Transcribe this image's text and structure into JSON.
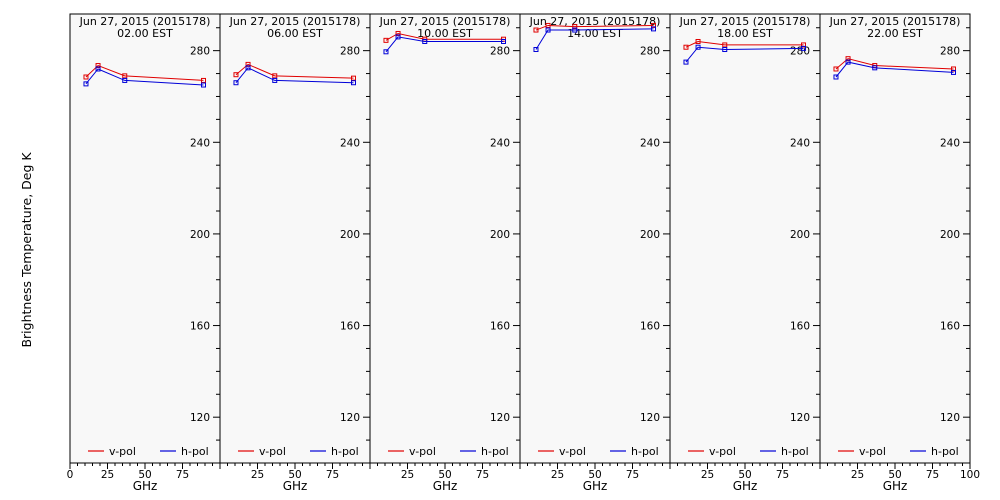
{
  "ylabel": "Brightness Temperature, Deg K",
  "colors": {
    "v_pol": "#e00000",
    "h_pol": "#0000d8",
    "panel_bg": "#f8f8f8",
    "axis": "#000000"
  },
  "chart_data": [
    {
      "type": "line",
      "title": "Jun 27, 2015 (2015178)",
      "subtitle": "02.00 EST",
      "xlabel": "GHz",
      "ylabel": "Brightness Temperature, Deg K",
      "xlim": [
        0,
        100
      ],
      "ylim": [
        100,
        296
      ],
      "x_ticks": [
        0,
        25,
        50,
        75,
        100
      ],
      "x_tick_labels": [
        "0",
        "25",
        "50",
        "75",
        ""
      ],
      "y_ticks": [
        120,
        160,
        200,
        240,
        280
      ],
      "grid": false,
      "legend_position": "bottom",
      "x": [
        10.65,
        18.7,
        36.5,
        89.0
      ],
      "series": [
        {
          "name": "v-pol",
          "values": [
            268.5,
            273.5,
            269,
            267
          ]
        },
        {
          "name": "h-pol",
          "values": [
            265.5,
            272,
            267,
            265
          ]
        }
      ]
    },
    {
      "type": "line",
      "title": "Jun 27, 2015 (2015178)",
      "subtitle": "06.00 EST",
      "xlabel": "GHz",
      "ylabel": "",
      "xlim": [
        0,
        100
      ],
      "ylim": [
        100,
        296
      ],
      "x_ticks": [
        0,
        25,
        50,
        75,
        100
      ],
      "x_tick_labels": [
        "",
        "25",
        "50",
        "75",
        ""
      ],
      "y_ticks": [
        120,
        160,
        200,
        240,
        280
      ],
      "grid": false,
      "legend_position": "bottom",
      "x": [
        10.65,
        18.7,
        36.5,
        89.0
      ],
      "series": [
        {
          "name": "v-pol",
          "values": [
            269.5,
            274,
            269,
            268
          ]
        },
        {
          "name": "h-pol",
          "values": [
            266,
            272.5,
            267,
            266
          ]
        }
      ]
    },
    {
      "type": "line",
      "title": "Jun 27, 2015 (2015178)",
      "subtitle": "10.00 EST",
      "xlabel": "GHz",
      "ylabel": "",
      "xlim": [
        0,
        100
      ],
      "ylim": [
        100,
        296
      ],
      "x_ticks": [
        0,
        25,
        50,
        75,
        100
      ],
      "x_tick_labels": [
        "",
        "25",
        "50",
        "75",
        ""
      ],
      "y_ticks": [
        120,
        160,
        200,
        240,
        280
      ],
      "grid": false,
      "legend_position": "bottom",
      "x": [
        10.65,
        18.7,
        36.5,
        89.0
      ],
      "series": [
        {
          "name": "v-pol",
          "values": [
            284.5,
            287.5,
            285,
            285
          ]
        },
        {
          "name": "h-pol",
          "values": [
            279.5,
            286,
            284,
            284
          ]
        }
      ]
    },
    {
      "type": "line",
      "title": "Jun 27, 2015 (2015178)",
      "subtitle": "14.00 EST",
      "xlabel": "GHz",
      "ylabel": "",
      "xlim": [
        0,
        100
      ],
      "ylim": [
        100,
        296
      ],
      "x_ticks": [
        0,
        25,
        50,
        75,
        100
      ],
      "x_tick_labels": [
        "",
        "25",
        "50",
        "75",
        ""
      ],
      "y_ticks": [
        120,
        160,
        200,
        240,
        280
      ],
      "grid": false,
      "legend_position": "bottom",
      "x": [
        10.65,
        18.7,
        36.5,
        89.0
      ],
      "series": [
        {
          "name": "v-pol",
          "values": [
            289,
            291,
            290.5,
            291
          ]
        },
        {
          "name": "h-pol",
          "values": [
            280.5,
            289,
            289,
            289.5
          ]
        }
      ]
    },
    {
      "type": "line",
      "title": "Jun 27, 2015 (2015178)",
      "subtitle": "18.00 EST",
      "xlabel": "GHz",
      "ylabel": "",
      "xlim": [
        0,
        100
      ],
      "ylim": [
        100,
        296
      ],
      "x_ticks": [
        0,
        25,
        50,
        75,
        100
      ],
      "x_tick_labels": [
        "",
        "25",
        "50",
        "75",
        ""
      ],
      "y_ticks": [
        120,
        160,
        200,
        240,
        280
      ],
      "grid": false,
      "legend_position": "bottom",
      "x": [
        10.65,
        18.7,
        36.5,
        89.0
      ],
      "series": [
        {
          "name": "v-pol",
          "values": [
            281.5,
            284,
            282.5,
            282.5
          ]
        },
        {
          "name": "h-pol",
          "values": [
            275,
            281.5,
            280.5,
            281
          ]
        }
      ]
    },
    {
      "type": "line",
      "title": "Jun 27, 2015 (2015178)",
      "subtitle": "22.00 EST",
      "xlabel": "GHz",
      "ylabel": "",
      "xlim": [
        0,
        100
      ],
      "ylim": [
        100,
        296
      ],
      "x_ticks": [
        0,
        25,
        50,
        75,
        100
      ],
      "x_tick_labels": [
        "",
        "25",
        "50",
        "75",
        "100"
      ],
      "y_ticks": [
        120,
        160,
        200,
        240,
        280
      ],
      "grid": false,
      "legend_position": "bottom",
      "x": [
        10.65,
        18.7,
        36.5,
        89.0
      ],
      "series": [
        {
          "name": "v-pol",
          "values": [
            272,
            276.5,
            273.5,
            272
          ]
        },
        {
          "name": "h-pol",
          "values": [
            268.5,
            275,
            272.5,
            270.5
          ]
        }
      ]
    }
  ]
}
